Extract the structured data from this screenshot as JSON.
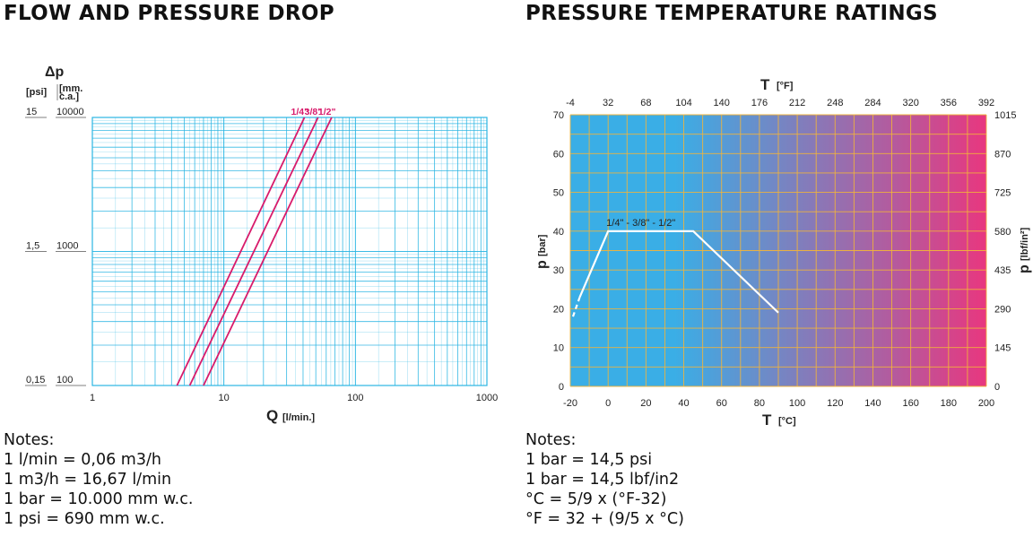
{
  "left": {
    "title": "FLOW AND PRESSURE DROP",
    "notes_heading": "Notes:",
    "notes": [
      "1 l/min = 0,06 m3/h",
      "1 m3/h = 16,67 l/min",
      "1 bar = 10.000 mm w.c.",
      "1 psi = 690 mm w.c."
    ]
  },
  "right": {
    "title": "PRESSURE TEMPERATURE RATINGS",
    "notes_heading": "Notes:",
    "notes": [
      "1 bar = 14,5 psi",
      "1 bar = 14,5 lbf/in2",
      "°C = 5/9 x (°F-32)",
      "°F = 32 + (9/5 x °C)"
    ]
  },
  "chart_data": [
    {
      "type": "line",
      "scale": "log-log",
      "grid": true,
      "grid_color": "#2bb6e3",
      "line_color": "#d81b6b",
      "xlabel": "Q",
      "xlabel_unit": "[l/min.]",
      "x_ticks": [
        "1",
        "10",
        "100",
        "1000"
      ],
      "xlim": [
        1,
        1000
      ],
      "ylabel": "Δp",
      "ylabel_units": [
        "[psi]",
        "[mm.",
        "c.a.]"
      ],
      "y_ticks_psi": [
        "15",
        "1,5",
        "0,15"
      ],
      "y_ticks_mmca": [
        "10000",
        "1000",
        "100"
      ],
      "ylim_mmca": [
        100,
        10000
      ],
      "series": [
        {
          "name": "1/4\"",
          "x": [
            4.4,
            41
          ],
          "y": [
            100,
            10000
          ]
        },
        {
          "name": "3/8\"",
          "x": [
            5.5,
            52
          ],
          "y": [
            100,
            10000
          ]
        },
        {
          "name": "1/2\"",
          "x": [
            7,
            66
          ],
          "y": [
            100,
            10000
          ]
        }
      ]
    },
    {
      "type": "line",
      "grid": true,
      "background": "gradient",
      "gradient_colors": [
        "#3aaee6",
        "#e8377f"
      ],
      "grid_color": "#f2b43a",
      "line_color": "#ffffff",
      "xlabel": "T",
      "xlabel_unit": "[°C]",
      "x_ticks": [
        "-20",
        "0",
        "20",
        "40",
        "60",
        "80",
        "100",
        "120",
        "140",
        "160",
        "180",
        "200"
      ],
      "xlim": [
        -20,
        200
      ],
      "x2label": "T",
      "x2label_unit": "[°F]",
      "x2_ticks": [
        "-4",
        "32",
        "68",
        "104",
        "140",
        "176",
        "212",
        "248",
        "284",
        "320",
        "356",
        "392"
      ],
      "ylabel": "p",
      "ylabel_unit": "[bar]",
      "y_ticks": [
        "0",
        "10",
        "20",
        "30",
        "40",
        "50",
        "60",
        "70"
      ],
      "ylim": [
        0,
        70
      ],
      "y2label": "p",
      "y2label_unit": "[lbf/in²]",
      "y2_ticks": [
        "0",
        "145",
        "290",
        "435",
        "580",
        "725",
        "870",
        "1015"
      ],
      "series": [
        {
          "name": "1/4\" - 3/8\" - 1/2\"",
          "x": [
            -15,
            0,
            45,
            90
          ],
          "y": [
            23,
            40,
            40,
            19
          ],
          "dashed_segment_x": [
            -20,
            -15
          ],
          "dashed_segment_y": [
            18,
            23
          ]
        }
      ]
    }
  ]
}
